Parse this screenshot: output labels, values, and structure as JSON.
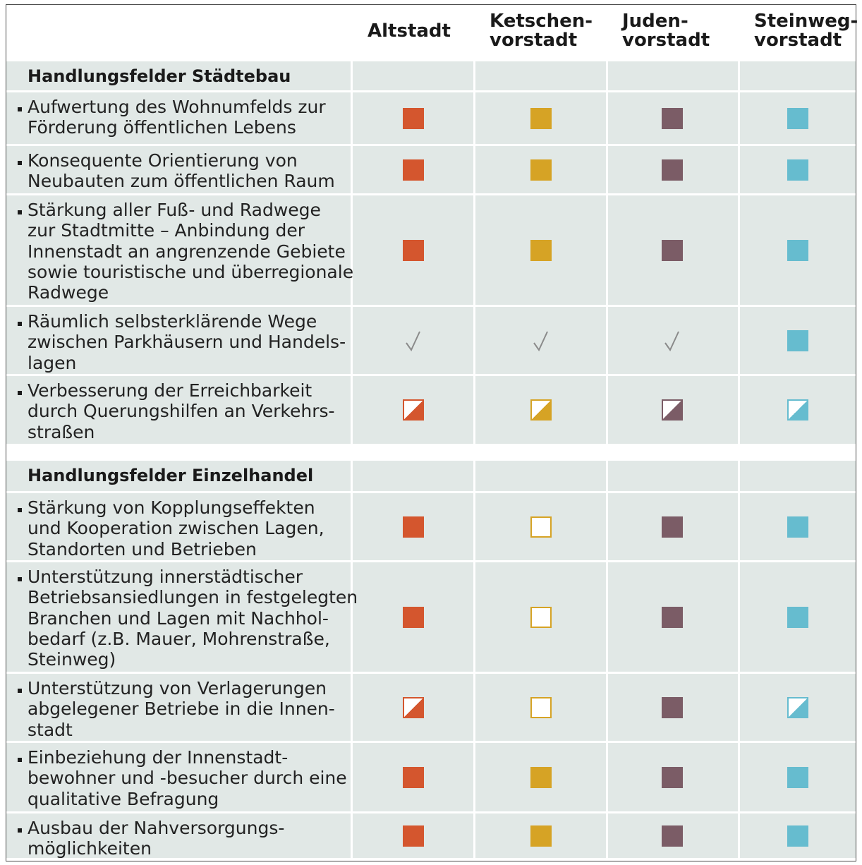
{
  "columns": [
    "Altstadt",
    "Ketschen-\nvorstadt",
    "Juden-\nvorstadt",
    "Steinweg-\nvorstadt"
  ],
  "colors": {
    "altstadt": "#d4562e",
    "ketschenvorstadt": "#d6a325",
    "judenvorstadt": "#7b5c66",
    "steinwegvorstadt": "#66bccf",
    "check": "#8a8a8a",
    "cell_bg": "#e1e8e6"
  },
  "legend_semantics": {
    "full": "filled square",
    "half": "half-filled square",
    "empty": "empty square",
    "check": "check mark"
  },
  "sections": [
    {
      "title": "Handlungsfelder Städtebau",
      "rows": [
        {
          "label": "Aufwertung des Wohnumfelds zur\nFörderung öffentlichen Lebens",
          "marks": [
            "full",
            "full",
            "full",
            "full"
          ]
        },
        {
          "label": "Konsequente Orientierung von\nNeubauten zum öffentlichen Raum",
          "marks": [
            "full",
            "full",
            "full",
            "full"
          ]
        },
        {
          "label": "Stärkung aller Fuß- und Radwege\nzur Stadtmitte – Anbindung der\nInnenstadt an angrenzende Gebiete\nsowie touristische und überregionale\nRadwege",
          "marks": [
            "full",
            "full",
            "full",
            "full"
          ]
        },
        {
          "label": "Räumlich selbsterklärende Wege\nzwischen Parkhäusern und Handels-\nlagen",
          "marks": [
            "check",
            "check",
            "check",
            "full"
          ]
        },
        {
          "label": "Verbesserung der Erreichbarkeit\ndurch Querungshilfen an Verkehrs-\nstraßen",
          "marks": [
            "half",
            "half",
            "half",
            "half"
          ]
        }
      ]
    },
    {
      "title": "Handlungsfelder Einzelhandel",
      "rows": [
        {
          "label": "Stärkung von Kopplungseffekten\nund Kooperation zwischen Lagen,\nStandorten und Betrieben",
          "marks": [
            "full",
            "empty",
            "full",
            "full"
          ]
        },
        {
          "label": "Unterstützung innerstädtischer\nBetriebsansiedlungen in festgelegten\nBranchen und Lagen mit Nachhol-\nbedarf  (z.B. Mauer, Mohrenstraße,\nSteinweg)",
          "marks": [
            "full",
            "empty",
            "full",
            "full"
          ]
        },
        {
          "label": "Unterstützung von Verlagerungen\nabgelegener Betriebe in die Innen-\nstadt",
          "marks": [
            "half",
            "empty",
            "full",
            "half"
          ]
        },
        {
          "label": "Einbeziehung der Innenstadt-\nbewohner und -besucher durch eine\nqualitative Befragung",
          "marks": [
            "full",
            "full",
            "full",
            "full"
          ]
        },
        {
          "label": "Ausbau der Nahversorgungs-\nmöglichkeiten",
          "marks": [
            "full",
            "full",
            "full",
            "full"
          ]
        }
      ]
    }
  ]
}
